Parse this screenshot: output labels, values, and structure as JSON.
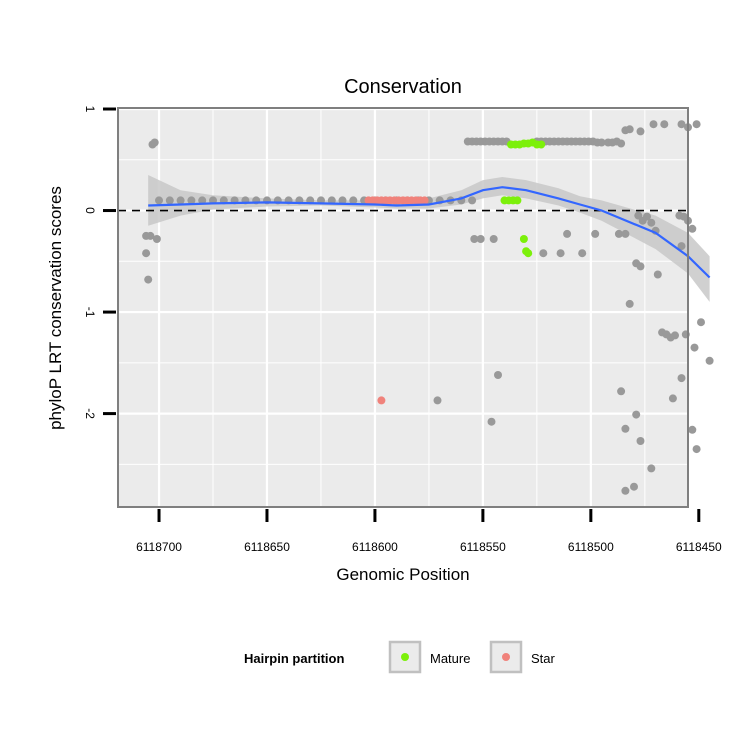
{
  "chart_data": {
    "type": "scatter",
    "title": "Conservation",
    "xlabel": "Genomic Position",
    "ylabel": "phyloP LRT conservation scores",
    "x_reversed": true,
    "xlim": [
      6118455,
      6118719
    ],
    "ylim": [
      -2.92,
      1.01
    ],
    "x_ticks": [
      6118700,
      6118650,
      6118600,
      6118550,
      6118500,
      6118450
    ],
    "x_tick_labels": [
      "6118700",
      "6118650",
      "6118600",
      "6118550",
      "6118500",
      "6118450"
    ],
    "y_ticks": [
      1,
      0,
      -1,
      -2
    ],
    "y_tick_labels": [
      "1",
      "0",
      "-1",
      "-2"
    ],
    "reference_line": {
      "y": 0,
      "style": "dashed"
    },
    "legend": {
      "title": "Hairpin partition",
      "position": "bottom",
      "entries": [
        {
          "label": "Mature",
          "color": "#7CF00A"
        },
        {
          "label": "Star",
          "color": "#F0827B"
        }
      ]
    },
    "colors": {
      "background": "#EBEBEB",
      "other": "#999999",
      "smooth_line": "#3366FF",
      "ribbon": "#C8C8C8",
      "grid": "#FFFFFF"
    },
    "series": [
      {
        "name": "Other",
        "color": "#999999",
        "points": [
          [
            6118703,
            0.65
          ],
          [
            6118702,
            0.67
          ],
          [
            6118704,
            -0.25
          ],
          [
            6118701,
            -0.28
          ],
          [
            6118706,
            -0.25
          ],
          [
            6118706,
            -0.42
          ],
          [
            6118705,
            -0.68
          ],
          [
            6118700,
            0.1
          ],
          [
            6118695,
            0.1
          ],
          [
            6118690,
            0.1
          ],
          [
            6118685,
            0.1
          ],
          [
            6118680,
            0.1
          ],
          [
            6118675,
            0.1
          ],
          [
            6118670,
            0.1
          ],
          [
            6118665,
            0.1
          ],
          [
            6118660,
            0.1
          ],
          [
            6118655,
            0.1
          ],
          [
            6118650,
            0.1
          ],
          [
            6118645,
            0.1
          ],
          [
            6118640,
            0.1
          ],
          [
            6118635,
            0.1
          ],
          [
            6118630,
            0.1
          ],
          [
            6118625,
            0.1
          ],
          [
            6118620,
            0.1
          ],
          [
            6118615,
            0.1
          ],
          [
            6118610,
            0.1
          ],
          [
            6118605,
            0.1
          ],
          [
            6118600,
            0.1
          ],
          [
            6118595,
            0.1
          ],
          [
            6118590,
            0.1
          ],
          [
            6118585,
            0.1
          ],
          [
            6118580,
            0.1
          ],
          [
            6118575,
            0.1
          ],
          [
            6118570,
            0.1
          ],
          [
            6118565,
            0.1
          ],
          [
            6118560,
            0.1
          ],
          [
            6118555,
            0.1
          ],
          [
            6118557,
            0.68
          ],
          [
            6118555,
            0.68
          ],
          [
            6118553,
            0.68
          ],
          [
            6118551,
            0.68
          ],
          [
            6118549,
            0.68
          ],
          [
            6118547,
            0.68
          ],
          [
            6118545,
            0.68
          ],
          [
            6118543,
            0.68
          ],
          [
            6118541,
            0.68
          ],
          [
            6118539,
            0.68
          ],
          [
            6118525,
            0.68
          ],
          [
            6118523,
            0.68
          ],
          [
            6118521,
            0.68
          ],
          [
            6118519,
            0.68
          ],
          [
            6118517,
            0.68
          ],
          [
            6118515,
            0.68
          ],
          [
            6118513,
            0.68
          ],
          [
            6118511,
            0.68
          ],
          [
            6118509,
            0.68
          ],
          [
            6118507,
            0.68
          ],
          [
            6118505,
            0.68
          ],
          [
            6118503,
            0.68
          ],
          [
            6118501,
            0.68
          ],
          [
            6118499,
            0.68
          ],
          [
            6118497,
            0.67
          ],
          [
            6118495,
            0.67
          ],
          [
            6118492,
            0.67
          ],
          [
            6118490,
            0.67
          ],
          [
            6118488,
            0.68
          ],
          [
            6118486,
            0.66
          ],
          [
            6118484,
            0.79
          ],
          [
            6118482,
            0.8
          ],
          [
            6118477,
            0.78
          ],
          [
            6118471,
            0.85
          ],
          [
            6118466,
            0.85
          ],
          [
            6118458,
            0.85
          ],
          [
            6118455,
            0.82
          ],
          [
            6118451,
            0.85
          ],
          [
            6118554,
            -0.28
          ],
          [
            6118551,
            -0.28
          ],
          [
            6118545,
            -0.28
          ],
          [
            6118511,
            -0.23
          ],
          [
            6118498,
            -0.23
          ],
          [
            6118487,
            -0.23
          ],
          [
            6118484,
            -0.23
          ],
          [
            6118522,
            -0.42
          ],
          [
            6118514,
            -0.42
          ],
          [
            6118504,
            -0.42
          ],
          [
            6118478,
            -0.05
          ],
          [
            6118476,
            -0.1
          ],
          [
            6118474,
            -0.06
          ],
          [
            6118472,
            -0.12
          ],
          [
            6118470,
            -0.2
          ],
          [
            6118459,
            -0.05
          ],
          [
            6118457,
            -0.06
          ],
          [
            6118455,
            -0.1
          ],
          [
            6118453,
            -0.18
          ],
          [
            6118479,
            -0.52
          ],
          [
            6118477,
            -0.55
          ],
          [
            6118469,
            -0.63
          ],
          [
            6118458,
            -0.35
          ],
          [
            6118482,
            -0.92
          ],
          [
            6118467,
            -1.2
          ],
          [
            6118465,
            -1.22
          ],
          [
            6118463,
            -1.25
          ],
          [
            6118461,
            -1.23
          ],
          [
            6118456,
            -1.22
          ],
          [
            6118452,
            -1.35
          ],
          [
            6118449,
            -1.1
          ],
          [
            6118445,
            -1.48
          ],
          [
            6118458,
            -1.65
          ],
          [
            6118543,
            -1.62
          ],
          [
            6118546,
            -2.08
          ],
          [
            6118571,
            -1.87
          ],
          [
            6118486,
            -1.78
          ],
          [
            6118484,
            -2.15
          ],
          [
            6118479,
            -2.01
          ],
          [
            6118477,
            -2.27
          ],
          [
            6118462,
            -1.85
          ],
          [
            6118453,
            -2.16
          ],
          [
            6118451,
            -2.35
          ],
          [
            6118484,
            -2.76
          ],
          [
            6118480,
            -2.72
          ],
          [
            6118472,
            -2.54
          ]
        ]
      },
      {
        "name": "Mature",
        "color": "#7CF00A",
        "points": [
          [
            6118537,
            0.65
          ],
          [
            6118535,
            0.65
          ],
          [
            6118533,
            0.65
          ],
          [
            6118531,
            0.66
          ],
          [
            6118529,
            0.66
          ],
          [
            6118527,
            0.67
          ],
          [
            6118525,
            0.65
          ],
          [
            6118523,
            0.65
          ],
          [
            6118540,
            0.1
          ],
          [
            6118538,
            0.1
          ],
          [
            6118536,
            0.1
          ],
          [
            6118534,
            0.1
          ],
          [
            6118531,
            -0.28
          ],
          [
            6118530,
            -0.4
          ],
          [
            6118529,
            -0.42
          ]
        ]
      },
      {
        "name": "Star",
        "color": "#F0827B",
        "points": [
          [
            6118603,
            0.1
          ],
          [
            6118601,
            0.1
          ],
          [
            6118599,
            0.1
          ],
          [
            6118597,
            0.1
          ],
          [
            6118595,
            0.1
          ],
          [
            6118593,
            0.1
          ],
          [
            6118591,
            0.1
          ],
          [
            6118589,
            0.1
          ],
          [
            6118587,
            0.1
          ],
          [
            6118585,
            0.1
          ],
          [
            6118583,
            0.1
          ],
          [
            6118581,
            0.1
          ],
          [
            6118579,
            0.1
          ],
          [
            6118577,
            0.1
          ],
          [
            6118597,
            -1.87
          ]
        ]
      }
    ],
    "smooth": {
      "x": [
        6118705,
        6118690,
        6118675,
        6118650,
        6118625,
        6118600,
        6118590,
        6118575,
        6118560,
        6118550,
        6118541,
        6118530,
        6118515,
        6118505,
        6118495,
        6118470,
        6118455,
        6118445
      ],
      "y": [
        0.05,
        0.06,
        0.07,
        0.08,
        0.07,
        0.06,
        0.05,
        0.06,
        0.12,
        0.2,
        0.23,
        0.2,
        0.12,
        0.06,
        0.0,
        -0.22,
        -0.45,
        -0.66
      ],
      "lower": [
        -0.15,
        -0.05,
        0.01,
        0.04,
        0.05,
        0.03,
        0.02,
        0.02,
        0.06,
        0.12,
        0.15,
        0.12,
        0.05,
        -0.02,
        -0.1,
        -0.38,
        -0.62,
        -0.9
      ],
      "upper": [
        0.35,
        0.2,
        0.15,
        0.12,
        0.1,
        0.1,
        0.1,
        0.12,
        0.2,
        0.3,
        0.33,
        0.3,
        0.22,
        0.14,
        0.1,
        -0.05,
        -0.22,
        -0.45
      ]
    }
  }
}
